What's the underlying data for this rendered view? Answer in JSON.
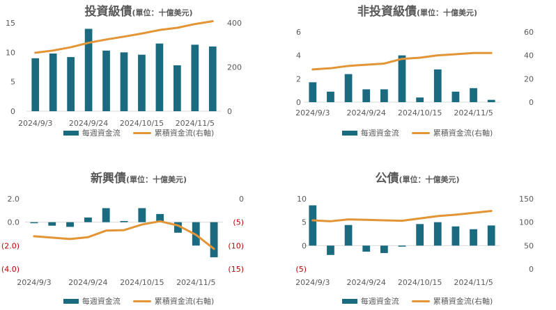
{
  "legend": {
    "bar_label": "每週資金流",
    "line_label": "累積資金流(右軸)"
  },
  "colors": {
    "bar": "#1a6b80",
    "line": "#e39435",
    "negative_tick": "#c00000",
    "axis_text": "#595959"
  },
  "chart_data": [
    {
      "type": "bar",
      "title": "投資級債",
      "unit": "(單位：十億美元)",
      "xtick_labels": [
        "2024/9/3",
        "2024/9/24",
        "2024/10/15",
        "2024/11/5"
      ],
      "x": [
        "2024/9/3",
        "2024/9/10",
        "2024/9/17",
        "2024/9/24",
        "2024/10/1",
        "2024/10/8",
        "2024/10/15",
        "2024/10/22",
        "2024/10/29",
        "2024/11/5",
        "2024/11/12"
      ],
      "series": [
        {
          "name": "每週資金流",
          "axis": "left",
          "type": "bar",
          "values": [
            9.0,
            9.8,
            9.2,
            14.0,
            10.3,
            10.0,
            9.6,
            11.5,
            7.8,
            11.3,
            11.0
          ]
        },
        {
          "name": "累積資金流(右軸)",
          "axis": "right",
          "type": "line",
          "values": [
            265,
            275,
            290,
            310,
            325,
            338,
            352,
            368,
            378,
            395,
            408
          ]
        }
      ],
      "left_axis": {
        "min": 0,
        "max": 15,
        "ticks": [
          "0",
          "5",
          "10",
          "15"
        ]
      },
      "right_axis": {
        "min": 0,
        "max": 400,
        "ticks": [
          "0",
          "200",
          "400"
        ]
      }
    },
    {
      "type": "bar",
      "title": "非投資級債",
      "unit": "(單位：十億美元)",
      "xtick_labels": [
        "2024/9/3",
        "2024/9/24",
        "2024/10/15",
        "2024/11/5"
      ],
      "x": [
        "2024/9/3",
        "2024/9/10",
        "2024/9/17",
        "2024/9/24",
        "2024/10/1",
        "2024/10/8",
        "2024/10/15",
        "2024/10/22",
        "2024/10/29",
        "2024/11/5",
        "2024/11/12"
      ],
      "series": [
        {
          "name": "每週資金流",
          "axis": "left",
          "type": "bar",
          "values": [
            1.7,
            0.9,
            2.4,
            1.1,
            1.1,
            4.0,
            0.4,
            2.8,
            0.9,
            1.2,
            0.2
          ]
        },
        {
          "name": "累積資金流(右軸)",
          "axis": "right",
          "type": "line",
          "values": [
            28,
            29,
            31,
            32,
            33,
            37,
            38,
            40,
            41,
            42,
            42
          ]
        }
      ],
      "left_axis": {
        "min": 0,
        "max": 6,
        "ticks": [
          "0",
          "2",
          "4",
          "6"
        ]
      },
      "right_axis": {
        "min": 0,
        "max": 60,
        "ticks": [
          "0",
          "20",
          "40",
          "60"
        ]
      }
    },
    {
      "type": "bar",
      "title": "新興債",
      "unit": "(單位：十億美元)",
      "xtick_labels": [
        "2024/9/3",
        "2024/9/24",
        "2024/10/15",
        "2024/11/5"
      ],
      "x": [
        "2024/9/3",
        "2024/9/10",
        "2024/9/17",
        "2024/9/24",
        "2024/10/1",
        "2024/10/8",
        "2024/10/15",
        "2024/10/22",
        "2024/10/29",
        "2024/11/5",
        "2024/11/12"
      ],
      "series": [
        {
          "name": "每週資金流",
          "axis": "left",
          "type": "bar",
          "values": [
            0.0,
            -0.3,
            -0.4,
            0.4,
            1.2,
            0.1,
            1.2,
            0.7,
            -0.9,
            -2.0,
            -3.0
          ]
        },
        {
          "name": "累積資金流(右軸)",
          "axis": "right",
          "type": "line",
          "values": [
            -8.0,
            -8.3,
            -8.6,
            -8.2,
            -6.8,
            -6.7,
            -5.5,
            -4.8,
            -5.7,
            -7.7,
            -10.7
          ]
        }
      ],
      "left_axis": {
        "min": -4,
        "max": 2,
        "ticks": [
          "(4.0)",
          "(2.0)",
          "0.0",
          "2.0"
        ]
      },
      "right_axis": {
        "min": -15,
        "max": 0,
        "ticks": [
          "(15)",
          "(10)",
          "(5)",
          "0"
        ]
      }
    },
    {
      "type": "bar",
      "title": "公債",
      "unit": "(單位：十億美元)",
      "xtick_labels": [
        "2024/9/3",
        "2024/9/24",
        "2024/10/15",
        "2024/11/5"
      ],
      "x": [
        "2024/9/3",
        "2024/9/10",
        "2024/9/17",
        "2024/9/24",
        "2024/10/1",
        "2024/10/8",
        "2024/10/15",
        "2024/10/22",
        "2024/10/29",
        "2024/11/5",
        "2024/11/12"
      ],
      "series": [
        {
          "name": "每週資金流",
          "axis": "left",
          "type": "bar",
          "values": [
            8.6,
            -2.0,
            4.4,
            -1.3,
            -1.6,
            -0.2,
            4.6,
            5.0,
            4.1,
            3.5,
            4.3
          ]
        },
        {
          "name": "累積資金流(右軸)",
          "axis": "right",
          "type": "line",
          "values": [
            104,
            102,
            106,
            105,
            104,
            103,
            108,
            113,
            116,
            120,
            124
          ]
        }
      ],
      "left_axis": {
        "min": -5,
        "max": 10,
        "ticks": [
          "(5)",
          "0",
          "5",
          "10"
        ]
      },
      "right_axis": {
        "min": 0,
        "max": 150,
        "ticks": [
          "0",
          "50",
          "100",
          "150"
        ]
      }
    }
  ]
}
